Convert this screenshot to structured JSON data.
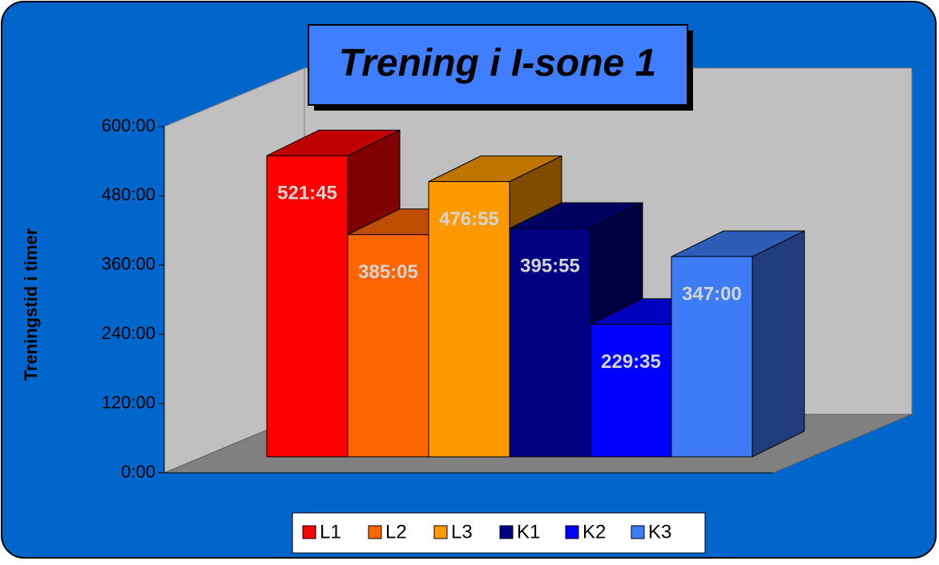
{
  "chart_data": {
    "type": "bar3d",
    "title": "Trening i I-sone 1",
    "y_label": "Treningstid i timer",
    "categories": [
      null
    ],
    "series": [
      {
        "name": "L1",
        "color": "#ff0000",
        "values": [
          31305
        ],
        "value_labels": [
          "521:45"
        ]
      },
      {
        "name": "L2",
        "color": "#ff6600",
        "values": [
          23105
        ],
        "value_labels": [
          "385:05"
        ]
      },
      {
        "name": "L3",
        "color": "#ff9900",
        "values": [
          28615
        ],
        "value_labels": [
          "476:55"
        ]
      },
      {
        "name": "K1",
        "color": "#000080",
        "values": [
          23755
        ],
        "value_labels": [
          "395:55"
        ]
      },
      {
        "name": "K2",
        "color": "#0000ff",
        "values": [
          13775
        ],
        "value_labels": [
          "229:35"
        ]
      },
      {
        "name": "K3",
        "color": "#3d7cf5",
        "values": [
          20820
        ],
        "value_labels": [
          "347:00"
        ]
      }
    ],
    "ylim": [
      0,
      36000
    ],
    "yticks": [
      {
        "value": 0,
        "label": "0:00"
      },
      {
        "value": 7200,
        "label": "120:00"
      },
      {
        "value": 14400,
        "label": "240:00"
      },
      {
        "value": 21600,
        "label": "360:00"
      },
      {
        "value": 28800,
        "label": "480:00"
      },
      {
        "value": 36000,
        "label": "600:00"
      }
    ],
    "legend": "bottom"
  }
}
